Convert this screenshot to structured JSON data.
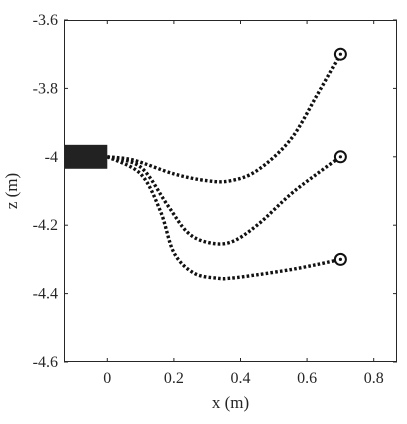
{
  "chart_data": {
    "type": "line",
    "xlabel": "x (m)",
    "ylabel": "z (m)",
    "xlim": [
      -0.13,
      0.87
    ],
    "ylim": [
      -4.6,
      -3.6
    ],
    "x_ticks": [
      0,
      0.2,
      0.4,
      0.6,
      0.8
    ],
    "x_tick_labels": [
      "0",
      "0.2",
      "0.4",
      "0.6",
      "0.8"
    ],
    "y_ticks": [
      -3.6,
      -3.8,
      -4,
      -4.2,
      -4.4,
      -4.6
    ],
    "y_tick_labels": [
      "-3.6",
      "-3.8",
      "-4",
      "-4.2",
      "-4.4",
      "-4.6"
    ],
    "grid": false,
    "box": true,
    "line_style": "dotted",
    "line_color": "#111111",
    "base_block": {
      "x_range": [
        -0.13,
        0.0
      ],
      "z_range": [
        -4.035,
        -3.965
      ],
      "color": "#222222"
    },
    "series": [
      {
        "x": [
          0.0,
          0.08,
          0.2,
          0.3,
          0.37,
          0.45,
          0.55,
          0.63,
          0.7
        ],
        "z": [
          -4.0,
          -4.01,
          -4.05,
          -4.07,
          -4.07,
          -4.04,
          -3.95,
          -3.82,
          -3.7
        ]
      },
      {
        "x": [
          0.0,
          0.1,
          0.18,
          0.24,
          0.3,
          0.37,
          0.45,
          0.55,
          0.63,
          0.7
        ],
        "z": [
          -4.0,
          -4.03,
          -4.14,
          -4.22,
          -4.25,
          -4.25,
          -4.2,
          -4.11,
          -4.05,
          -4.0
        ]
      },
      {
        "x": [
          0.0,
          0.1,
          0.16,
          0.2,
          0.26,
          0.33,
          0.37,
          0.45,
          0.55,
          0.63,
          0.7
        ],
        "z": [
          -4.0,
          -4.05,
          -4.16,
          -4.28,
          -4.34,
          -4.355,
          -4.355,
          -4.345,
          -4.33,
          -4.315,
          -4.3
        ]
      }
    ],
    "end_markers": [
      {
        "x": 0.7,
        "z": -3.7
      },
      {
        "x": 0.7,
        "z": -4.0
      },
      {
        "x": 0.7,
        "z": -4.3
      }
    ]
  }
}
